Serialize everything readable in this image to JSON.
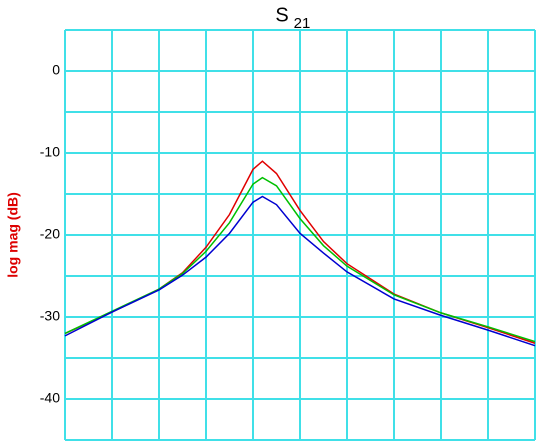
{
  "chart_data": {
    "type": "line",
    "title": "S",
    "title_subscript": "21",
    "ylabel": "log mag (dB)",
    "ylabel_color": "#dd0000",
    "x": [
      0,
      1,
      2,
      2.5,
      3,
      3.5,
      4,
      4.2,
      4.5,
      5,
      5.5,
      6,
      7,
      8,
      9,
      10
    ],
    "xlim": [
      0,
      10
    ],
    "xgrid": [
      0,
      1,
      2,
      3,
      4,
      5,
      6,
      7,
      8,
      9,
      10
    ],
    "ylim": [
      -45,
      5
    ],
    "yticks": [
      -40,
      -30,
      -20,
      -10,
      0
    ],
    "ygrid": [
      -45,
      -40,
      -35,
      -30,
      -25,
      -20,
      -15,
      -10,
      -5,
      0,
      5
    ],
    "grid": true,
    "grid_color": "#40e0e8",
    "series": [
      {
        "name": "red",
        "color": "#e00000",
        "values": [
          -32,
          -29.4,
          -26.6,
          -24.6,
          -21.5,
          -17.5,
          -12,
          -11,
          -12.5,
          -17,
          -20.8,
          -23.5,
          -27.2,
          -29.5,
          -31.3,
          -33.2
        ]
      },
      {
        "name": "green",
        "color": "#00c000",
        "values": [
          -32,
          -29.3,
          -26.6,
          -24.7,
          -22,
          -18.5,
          -13.8,
          -13,
          -14,
          -18,
          -21.3,
          -23.8,
          -27.3,
          -29.5,
          -31.2,
          -33
        ]
      },
      {
        "name": "blue",
        "color": "#0000d0",
        "values": [
          -32.3,
          -29.4,
          -26.7,
          -24.9,
          -22.7,
          -19.8,
          -16,
          -15.3,
          -16.3,
          -19.8,
          -22.2,
          -24.5,
          -27.8,
          -29.8,
          -31.6,
          -33.5
        ]
      }
    ]
  }
}
